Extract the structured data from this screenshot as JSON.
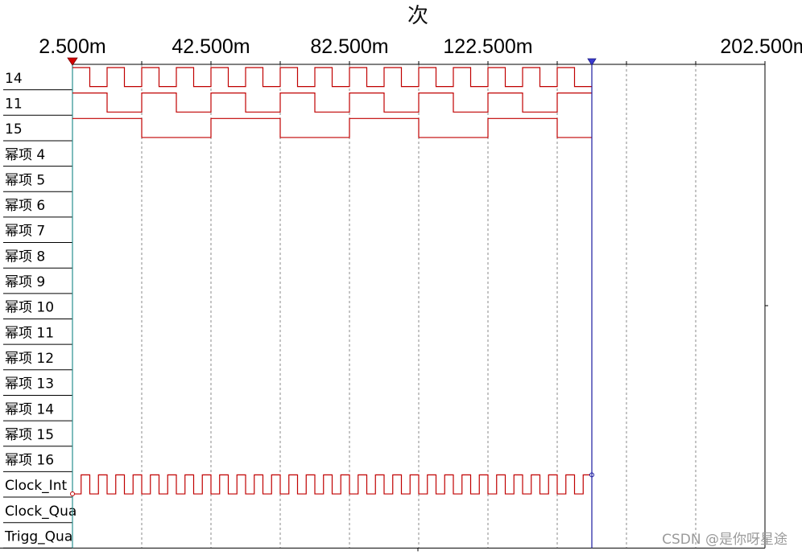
{
  "title": "次",
  "time_axis": {
    "labels": [
      "2.500m",
      "42.500m",
      "82.500m",
      "122.500m",
      "202.500m"
    ],
    "label_times_ms": [
      2.5,
      42.5,
      82.5,
      122.5,
      202.5
    ],
    "start_ms": 2.5,
    "end_ms": 202.5,
    "grid_step_ms": 20,
    "cursor_left_ms": 2.5,
    "cursor_right_ms": 152.5
  },
  "channels": [
    {
      "label": "14",
      "period_ms": 10,
      "high_first": true
    },
    {
      "label": "11",
      "period_ms": 20,
      "high_first": true
    },
    {
      "label": "15",
      "period_ms": 40,
      "high_first": true
    },
    {
      "label": "幂项 4"
    },
    {
      "label": "幂项 5"
    },
    {
      "label": "幂项 6"
    },
    {
      "label": "幂项 7"
    },
    {
      "label": "幂项 8"
    },
    {
      "label": "幂项 9"
    },
    {
      "label": "幂项 10"
    },
    {
      "label": "幂项 11"
    },
    {
      "label": "幂项 12"
    },
    {
      "label": "幂项 13"
    },
    {
      "label": "幂项 14"
    },
    {
      "label": "幂项 15"
    },
    {
      "label": "幂项 16"
    },
    {
      "label": "Clock_Int",
      "period_ms": 5,
      "high_first": false
    },
    {
      "label": "Clock_Qua"
    },
    {
      "label": "Trigg_Qua"
    }
  ],
  "colors": {
    "wave": "#c00000",
    "cursor_left": "#d40000",
    "cursor_right": "#1a1aa0",
    "left_edge": "#2a9090",
    "grid": "#8a8a8a"
  },
  "watermark": "CSDN @是你呀星途"
}
